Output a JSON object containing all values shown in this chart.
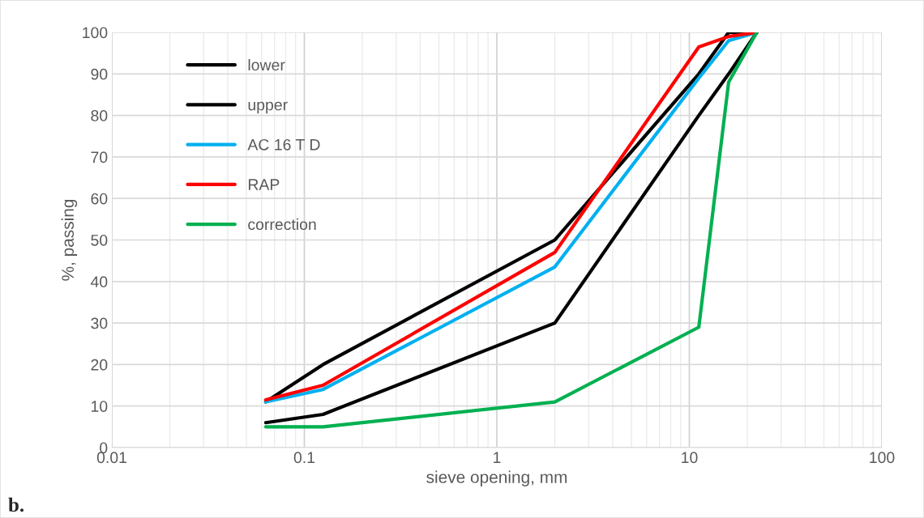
{
  "chart_data": {
    "type": "line",
    "xlabel": "sieve opening, mm",
    "ylabel": "%, passing",
    "log": "x",
    "x": [
      0.063,
      0.125,
      2,
      11.2,
      16,
      22.4
    ],
    "series": [
      {
        "name": "lower",
        "color": "#000000",
        "values": [
          6,
          8,
          30,
          80,
          90,
          100
        ]
      },
      {
        "name": "upper",
        "color": "#000000",
        "values": [
          11,
          20,
          50,
          90,
          100,
          100
        ]
      },
      {
        "name": "AC 16 T D",
        "color": "#00b0f0",
        "values": [
          11,
          14,
          43.5,
          89,
          98,
          100
        ]
      },
      {
        "name": "RAP",
        "color": "#ff0000",
        "values": [
          11.5,
          15,
          47,
          96.5,
          99,
          100
        ]
      },
      {
        "name": "correction",
        "color": "#00b050",
        "values": [
          5,
          5,
          11,
          29,
          88,
          100
        ]
      }
    ],
    "xlim": [
      0.01,
      100
    ],
    "xticks": [
      0.01,
      0.1,
      1,
      10,
      100
    ],
    "ylim": [
      0,
      100
    ],
    "yticks": [
      0,
      10,
      20,
      30,
      40,
      50,
      60,
      70,
      80,
      90,
      100
    ],
    "grid": true,
    "legend": "top left",
    "marker": "none",
    "line_style": "solid",
    "annotations": [
      "b."
    ]
  }
}
